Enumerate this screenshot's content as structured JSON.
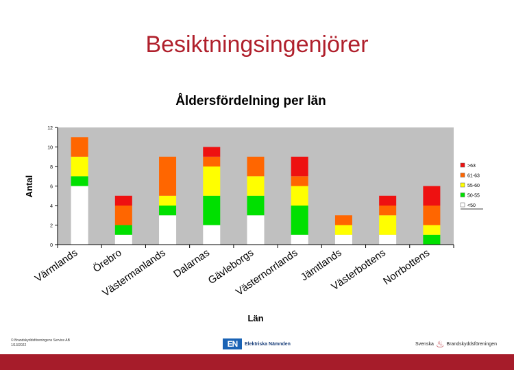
{
  "slide": {
    "title": "Besiktningsingenjörer"
  },
  "chart_data": {
    "type": "bar",
    "stacked": true,
    "title": "Åldersfördelning per län",
    "xlabel": "Län",
    "ylabel": "Antal",
    "ylim": [
      0,
      12
    ],
    "yticks": [
      "0",
      "2",
      "4",
      "6",
      "8",
      "10",
      "12"
    ],
    "categories": [
      "Värmlands",
      "Örebro",
      "Västermanlands",
      "Dalarnas",
      "Gävleborgs",
      "Västernorrlands",
      "Jämtlands",
      "Västerbottens",
      "Norrbottens"
    ],
    "series": [
      {
        "name": "<50",
        "color": "#ffffff",
        "values": [
          6,
          1,
          3,
          2,
          3,
          1,
          1,
          1,
          0
        ]
      },
      {
        "name": "50-55",
        "color": "#00e000",
        "values": [
          1,
          1,
          1,
          3,
          2,
          3,
          0,
          0,
          1
        ]
      },
      {
        "name": "55-60",
        "color": "#ffff00",
        "values": [
          2,
          0,
          1,
          3,
          2,
          2,
          1,
          2,
          1
        ]
      },
      {
        "name": "61-63",
        "color": "#ff6600",
        "values": [
          2,
          2,
          4,
          1,
          2,
          1,
          1,
          1,
          2
        ]
      },
      {
        "name": ">63",
        "color": "#ee1111",
        "values": [
          0,
          1,
          0,
          1,
          0,
          2,
          0,
          1,
          2
        ]
      }
    ],
    "legend_order": [
      ">63",
      "61-63",
      "55-60",
      "50-55",
      "<50"
    ],
    "legend_position": "right",
    "grid": false,
    "plot_background": "#c0c0c0"
  },
  "footer": {
    "copyright": "© Brandskyddsföreningens Service AB",
    "date": "1/13/2022",
    "en_logo_mark": "EN",
    "en_logo_text": "Elektriska Nämnden",
    "sbf_left": "Svenska",
    "sbf_right": "Brandskyddsföreningen"
  },
  "colors": {
    "accent": "#a61c2a",
    "title": "#b0202c"
  }
}
